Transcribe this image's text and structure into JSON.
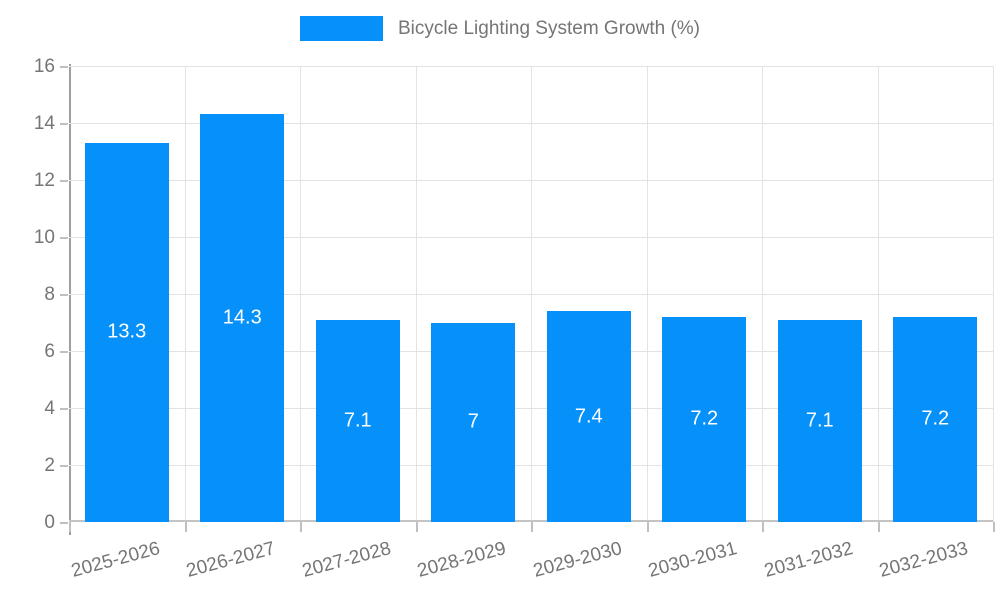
{
  "chart_data": {
    "type": "bar",
    "title": "Bicycle Lighting System Growth (%)",
    "categories": [
      "2025-2026",
      "2026-2027",
      "2027-2028",
      "2028-2029",
      "2029-2030",
      "2030-2031",
      "2031-2032",
      "2032-2033"
    ],
    "values": [
      13.3,
      14.3,
      7.1,
      7,
      7.4,
      7.2,
      7.1,
      7.2
    ],
    "bar_labels": [
      "13.3",
      "14.3",
      "7.1",
      "7",
      "7.4",
      "7.2",
      "7.1",
      "7.2"
    ],
    "xlabel": "",
    "ylabel": "",
    "ylim": [
      0,
      16
    ],
    "ytick_step": 2,
    "yticks": [
      "0",
      "2",
      "4",
      "6",
      "8",
      "10",
      "12",
      "14",
      "16"
    ],
    "grid": true,
    "legend_position": "top",
    "colors": {
      "bar": "#0591f9",
      "grid": "#e3e3e3",
      "axis": "#9e9e9e",
      "tick_label": "#757575",
      "bar_label": "#ffffff",
      "background": "#ffffff"
    }
  }
}
